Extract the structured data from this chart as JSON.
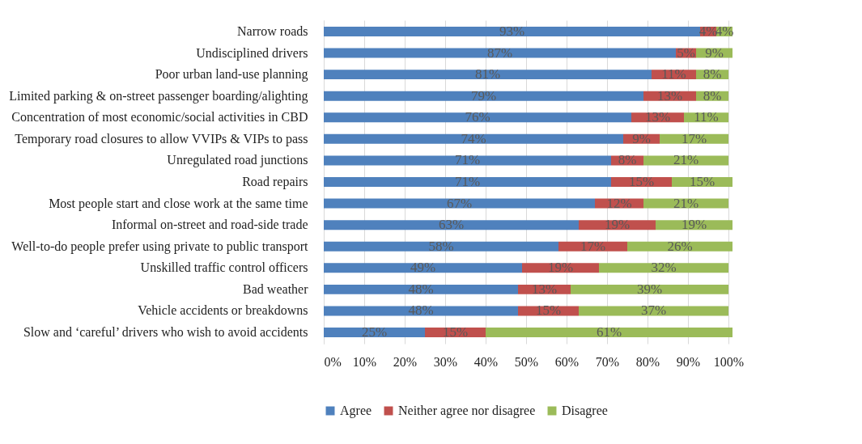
{
  "chart_data": {
    "type": "bar",
    "orientation": "horizontal",
    "stacked": true,
    "categories": [
      "Narrow roads",
      "Undisciplined drivers",
      "Poor urban land-use planning",
      "Limited parking & on-street passenger boarding/alighting",
      "Concentration of most economic/social activities in CBD",
      "Temporary road closures to allow VVIPs & VIPs to pass",
      "Unregulated road junctions",
      "Road repairs",
      "Most people start and close work at the same time",
      "Informal on-street and road-side trade",
      "Well-to-do people prefer using private to public transport",
      "Unskilled traffic control officers",
      "Bad weather",
      "Vehicle accidents or breakdowns",
      "Slow and ‘careful’ drivers who wish to avoid accidents"
    ],
    "series": [
      {
        "name": "Agree",
        "color": "#4f81bd",
        "values": [
          93,
          87,
          81,
          79,
          76,
          74,
          71,
          71,
          67,
          63,
          58,
          49,
          48,
          48,
          25
        ],
        "value_labels": [
          "93%",
          "87%",
          "81%",
          "79%",
          "76%",
          "74%",
          "71%",
          "71%",
          "67%",
          "63%",
          "58%",
          "49%",
          "48%",
          "48%",
          "25%"
        ]
      },
      {
        "name": "Neither agree nor disagree",
        "color": "#c0504d",
        "values": [
          4,
          5,
          11,
          13,
          13,
          9,
          8,
          15,
          12,
          19,
          17,
          19,
          13,
          15,
          15
        ],
        "value_labels": [
          "4%",
          "5%",
          "11%",
          "13%",
          "13%",
          "9%",
          "8%",
          "15%",
          "12%",
          "19%",
          "17%",
          "19%",
          "13%",
          "15%",
          "15%"
        ]
      },
      {
        "name": "Disagree",
        "color": "#9bbb59",
        "values": [
          4,
          9,
          8,
          8,
          11,
          17,
          21,
          15,
          21,
          19,
          26,
          32,
          39,
          37,
          61
        ],
        "value_labels": [
          "4%",
          "9%",
          "8%",
          "8%",
          "11%",
          "17%",
          "21%",
          "15%",
          "21%",
          "19%",
          "26%",
          "32%",
          "39%",
          "37%",
          "61%"
        ]
      }
    ],
    "xlim": [
      0,
      101
    ],
    "xticks": [
      {
        "value": 0,
        "label": "0%"
      },
      {
        "value": 10,
        "label": "10%"
      },
      {
        "value": 20,
        "label": "20%"
      },
      {
        "value": 30,
        "label": "30%"
      },
      {
        "value": 40,
        "label": "40%"
      },
      {
        "value": 50,
        "label": "50%"
      },
      {
        "value": 60,
        "label": "60%"
      },
      {
        "value": 70,
        "label": "70%"
      },
      {
        "value": 80,
        "label": "80%"
      },
      {
        "value": 90,
        "label": "90%"
      },
      {
        "value": 100,
        "label": "100%"
      }
    ],
    "grid": "x",
    "legend": "bottom"
  }
}
